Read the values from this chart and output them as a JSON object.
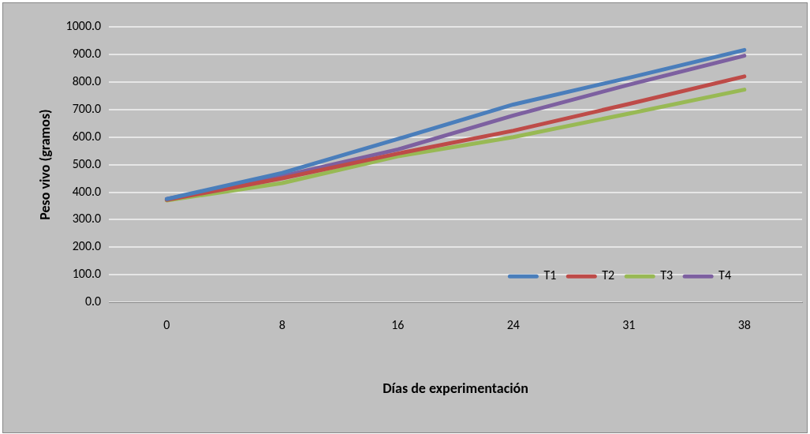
{
  "chart_data": {
    "type": "line",
    "xlabel": "Días de experimentación",
    "ylabel": "Peso vivo (gramos)",
    "categories": [
      "0",
      "8",
      "16",
      "24",
      "31",
      "38"
    ],
    "series": [
      {
        "name": "T1",
        "color": "#4a7ebb",
        "values": [
          375,
          470,
          593,
          718,
          815,
          916
        ]
      },
      {
        "name": "T2",
        "color": "#be4b48",
        "values": [
          372,
          450,
          540,
          623,
          720,
          820
        ]
      },
      {
        "name": "T3",
        "color": "#98b954",
        "values": [
          370,
          433,
          530,
          600,
          685,
          772
        ]
      },
      {
        "name": "T4",
        "color": "#7d60a0",
        "values": [
          375,
          458,
          555,
          678,
          790,
          895
        ]
      }
    ],
    "ylim": [
      0,
      1000
    ],
    "yticks": [
      {
        "value": 0,
        "label": "0.0"
      },
      {
        "value": 100,
        "label": "100.0"
      },
      {
        "value": 200,
        "label": "200.0"
      },
      {
        "value": 300,
        "label": "300.0"
      },
      {
        "value": 400,
        "label": "400.0"
      },
      {
        "value": 500,
        "label": "500.0"
      },
      {
        "value": 600,
        "label": "600.0"
      },
      {
        "value": 700,
        "label": "700.0"
      },
      {
        "value": 800,
        "label": "800.0"
      },
      {
        "value": 900,
        "label": "900.0"
      },
      {
        "value": 1000,
        "label": "1000.0"
      }
    ],
    "grid": "y",
    "legend": "bottom right",
    "marker": "none",
    "line_style": "solid"
  }
}
